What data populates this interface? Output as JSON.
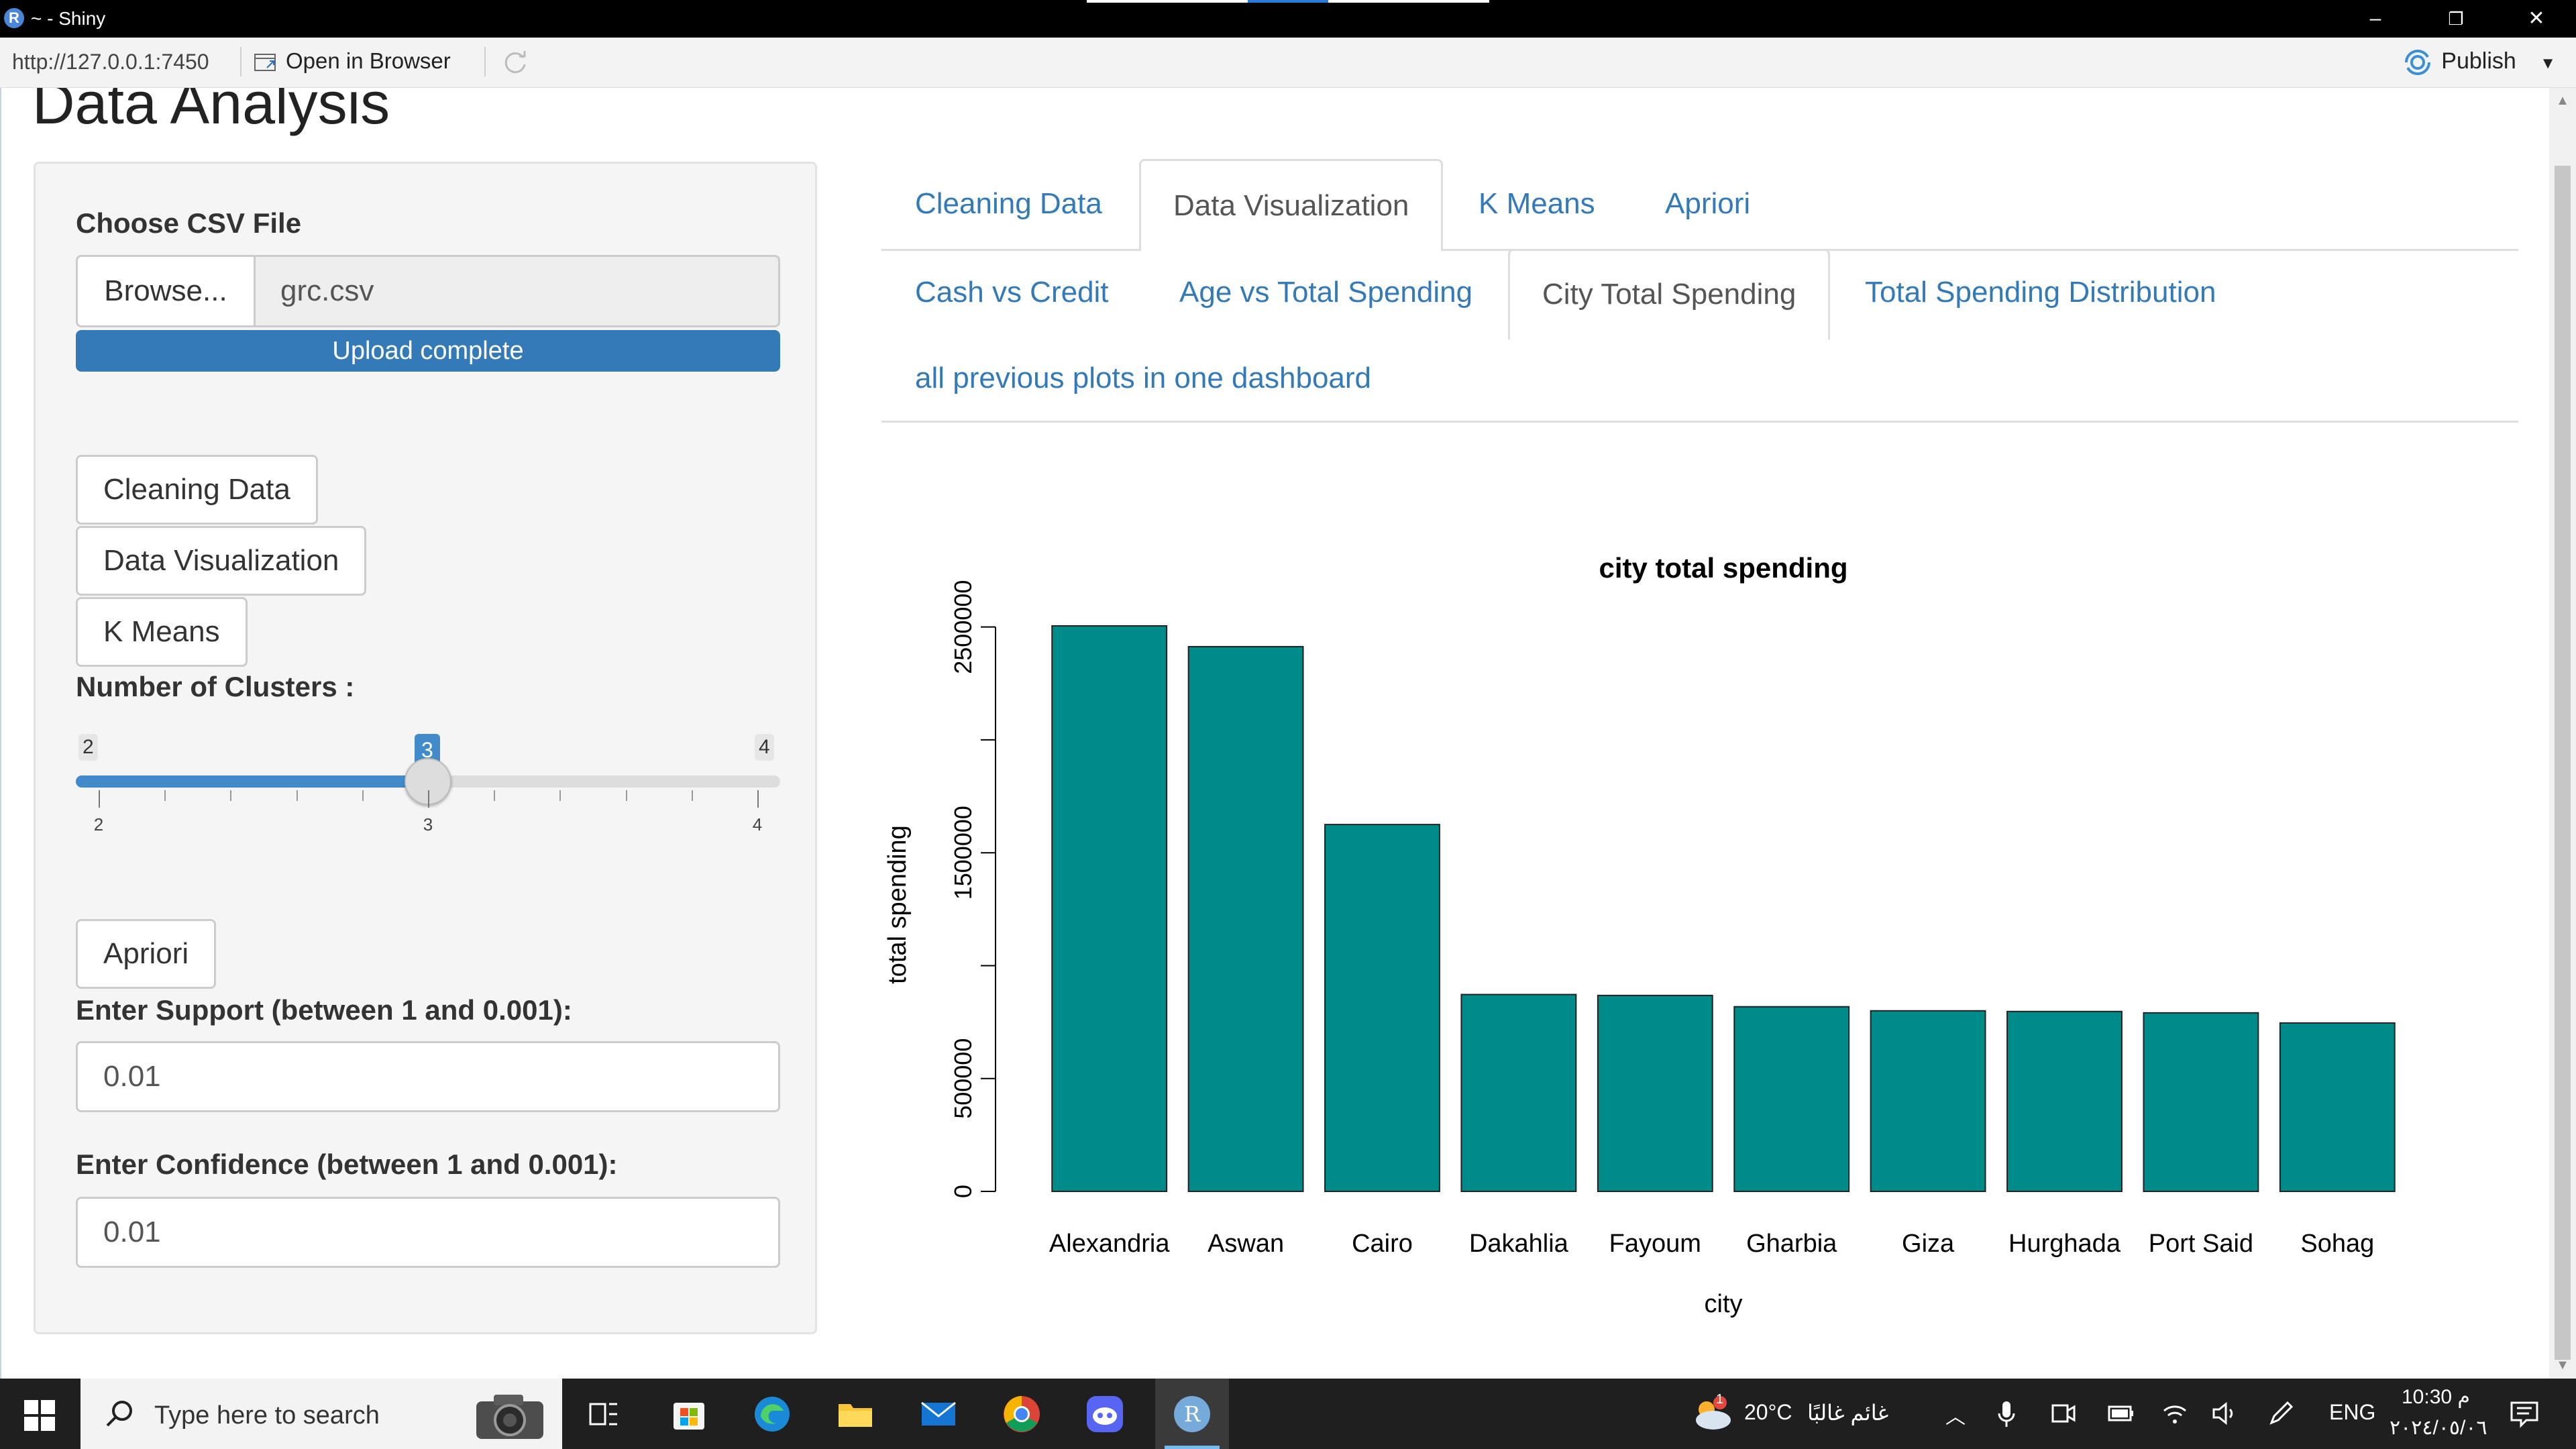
{
  "window": {
    "title": "~ - Shiny",
    "minimize": "–",
    "restore": "❐",
    "close": "✕"
  },
  "toolbar": {
    "url": "http://127.0.0.1:7450",
    "open_in_browser": "Open in Browser",
    "publish": "Publish"
  },
  "page": {
    "title": "Data Analysis"
  },
  "sidebar": {
    "file_label": "Choose CSV File",
    "browse_label": "Browse...",
    "file_name": "grc.csv",
    "upload_status": "Upload complete",
    "upload_progress_percent": 100,
    "btn_cleaning": "Cleaning Data",
    "btn_visualization": "Data Visualization",
    "btn_kmeans": "K Means",
    "clusters_label": "Number of Clusters :",
    "slider": {
      "min": 2,
      "max": 4,
      "value": 3,
      "min_label": "2",
      "max_label": "4",
      "value_label": "3",
      "grid_labels": [
        "2",
        "3",
        "4"
      ]
    },
    "btn_apriori": "Apriori",
    "support_label": "Enter Support (between 1 and 0.001):",
    "support_value": "0.01",
    "confidence_label": "Enter Confidence (between 1 and 0.001):",
    "confidence_value": "0.01"
  },
  "tabs": {
    "main": [
      "Cleaning Data",
      "Data Visualization",
      "K Means",
      "Apriori"
    ],
    "main_active": "Data Visualization",
    "sub": [
      "Cash vs Credit",
      "Age vs Total Spending",
      "City Total Spending",
      "Total Spending Distribution"
    ],
    "sub_extra": "all previous plots in one dashboard",
    "sub_active": "City Total Spending"
  },
  "chart_data": {
    "type": "bar",
    "title": "city total spending",
    "xlabel": "city",
    "ylabel": "total spending",
    "categories": [
      "Alexandria",
      "Aswan",
      "Cairo",
      "Dakahlia",
      "Fayoum",
      "Gharbia",
      "Giza",
      "Hurghada",
      "Port Said",
      "Sohag"
    ],
    "values": [
      2505000,
      2413000,
      1625000,
      872000,
      868000,
      818000,
      800000,
      797000,
      791000,
      746000
    ],
    "ylim": [
      0,
      2600000
    ],
    "yticks": [
      0,
      500000,
      1000000,
      1500000,
      2000000,
      2500000
    ],
    "ytick_labels": [
      "0",
      "500000",
      "",
      "1500000",
      "",
      "2500000"
    ],
    "bar_color": "#008B8B"
  },
  "taskbar": {
    "search_placeholder": "Type here to search",
    "weather_temp": "20°C",
    "weather_text": "غائم غالبًا",
    "language": "ENG",
    "time": "10:30 م",
    "date": "٢٠٢٤/٠٥/٠٦",
    "weather_badge": "1",
    "apps": [
      "task-view",
      "microsoft-store",
      "edge",
      "file-explorer",
      "mail",
      "chrome",
      "discord",
      "rstudio"
    ]
  },
  "colors": {
    "accent": "#337ab7",
    "slider": "#428bca",
    "bar": "#008B8B"
  }
}
